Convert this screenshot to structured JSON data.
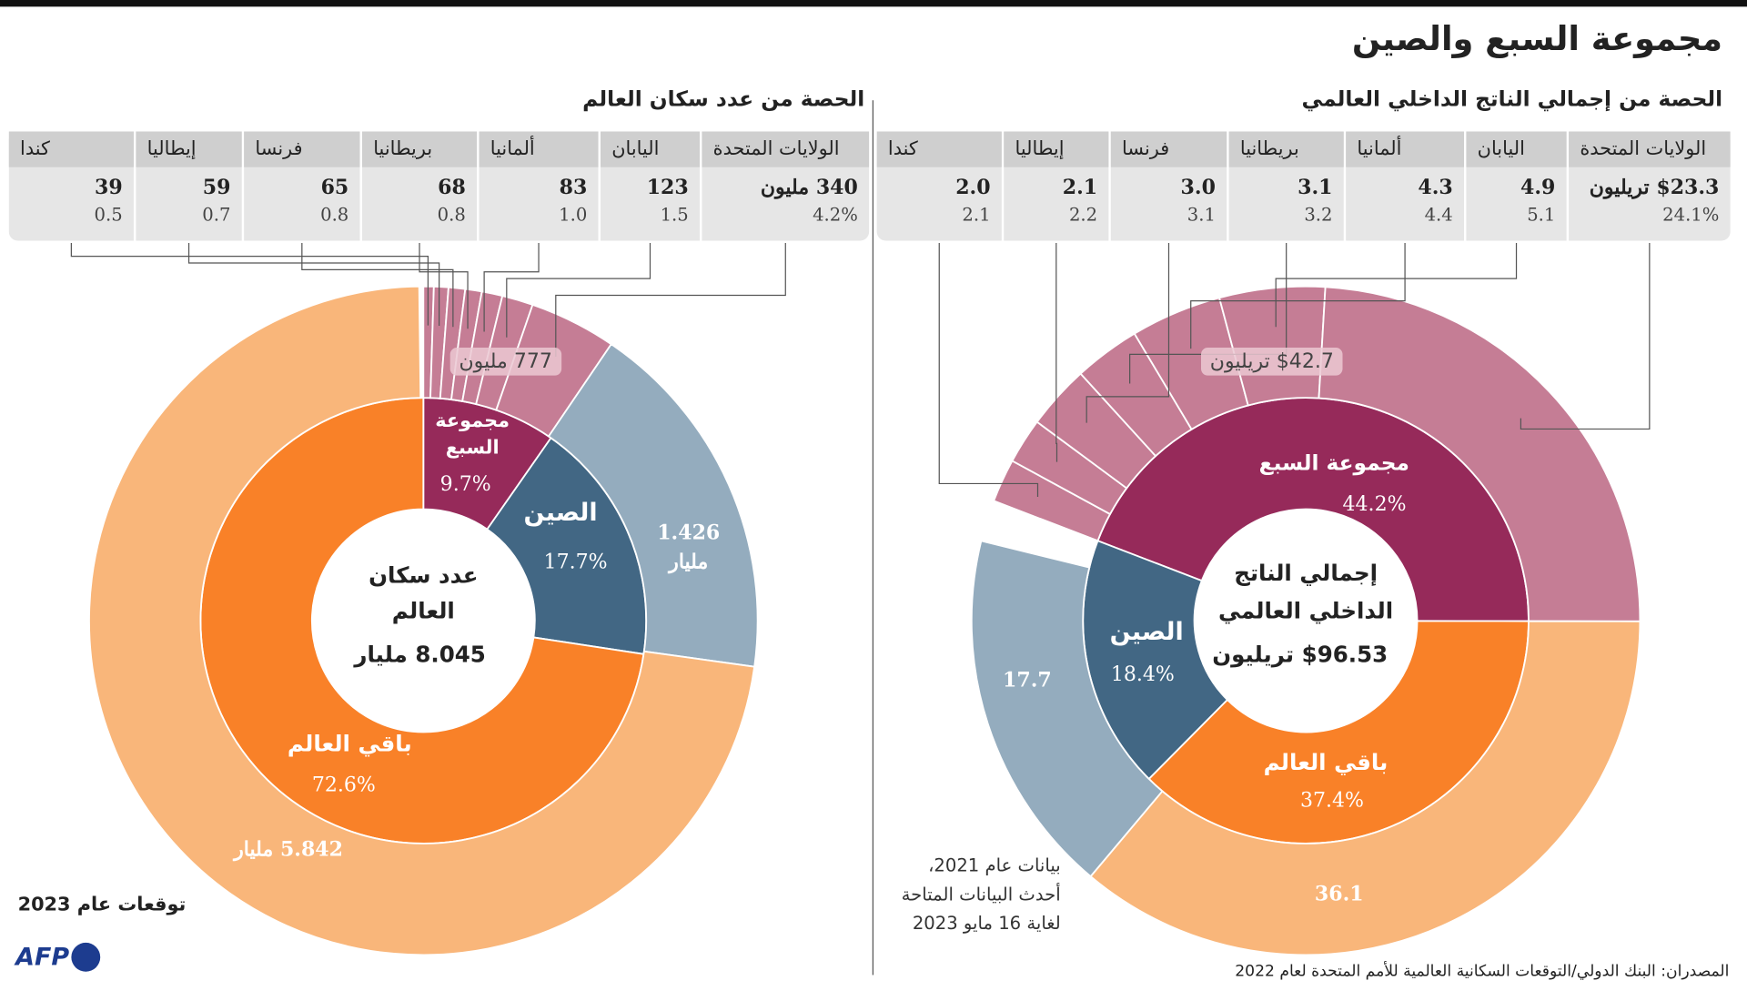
{
  "title": "مجموعة السبع والصين",
  "gdp": {
    "subtitle": "الحصة من إجمالي الناتج الداخلي العالمي",
    "table": [
      {
        "country": "الولايات المتحدة",
        "value": "$23.3 تريليون",
        "share": "24.1%"
      },
      {
        "country": "اليابان",
        "value": "4.9",
        "share": "5.1"
      },
      {
        "country": "ألمانيا",
        "value": "4.3",
        "share": "4.4"
      },
      {
        "country": "بريطانيا",
        "value": "3.1",
        "share": "3.2"
      },
      {
        "country": "فرنسا",
        "value": "3.0",
        "share": "3.1"
      },
      {
        "country": "إيطاليا",
        "value": "2.1",
        "share": "2.2"
      },
      {
        "country": "كندا",
        "value": "2.0",
        "share": "2.1"
      }
    ],
    "center_label": "إجمالي الناتج الداخلي العالمي",
    "center_value": "$96.53 تريليون",
    "g7_total": "$42.7 تريليون",
    "g7_label": "مجموعة السبع",
    "g7_share": "44.2%",
    "china_label": "الصين",
    "china_share": "18.4%",
    "china_value": "17.7",
    "rest_label": "باقي العالم",
    "rest_share": "37.4%",
    "rest_value": "36.1",
    "note": [
      "بيانات عام 2021،",
      "أحدث البيانات المتاحة",
      "لغاية 16 مايو 2023"
    ]
  },
  "population": {
    "subtitle": "الحصة من عدد سكان العالم",
    "table": [
      {
        "country": "الولايات المتحدة",
        "value": "340 مليون",
        "share": "4.2%"
      },
      {
        "country": "اليابان",
        "value": "123",
        "share": "1.5"
      },
      {
        "country": "ألمانيا",
        "value": "83",
        "share": "1.0"
      },
      {
        "country": "بريطانيا",
        "value": "68",
        "share": "0.8"
      },
      {
        "country": "فرنسا",
        "value": "65",
        "share": "0.8"
      },
      {
        "country": "إيطاليا",
        "value": "59",
        "share": "0.7"
      },
      {
        "country": "كندا",
        "value": "39",
        "share": "0.5"
      }
    ],
    "center_label": "عدد سكان العالم",
    "center_value": "8.045 مليار",
    "g7_total": "777 مليون",
    "g7_label": "مجموعة السبع",
    "g7_share": "9.7%",
    "china_label": "الصين",
    "china_share": "17.7%",
    "china_value": "1.426 مليار",
    "rest_label": "باقي العالم",
    "rest_share": "72.6%",
    "rest_value": "5.842 مليار",
    "note": "توقعات عام 2023"
  },
  "source": "المصدران: البنك الدولي/التوقعات السكانية العالمية للأمم المتحدة لعام 2022",
  "logo": "AFP",
  "chart_data": [
    {
      "type": "pie",
      "title": "الحصة من إجمالي الناتج الداخلي العالمي",
      "inner": {
        "categories": [
          "مجموعة السبع",
          "باقي العالم",
          "الصين"
        ],
        "values": [
          44.2,
          37.4,
          18.4
        ]
      },
      "outer": {
        "categories": [
          "كندا",
          "إيطاليا",
          "فرنسا",
          "بريطانيا",
          "ألمانيا",
          "اليابان",
          "الولايات المتحدة",
          "باقي العالم",
          "الصين"
        ],
        "values": [
          2.1,
          2.2,
          3.1,
          3.2,
          4.4,
          5.1,
          24.1,
          36.1,
          17.7
        ]
      }
    },
    {
      "type": "pie",
      "title": "الحصة من عدد سكان العالم",
      "inner": {
        "categories": [
          "مجموعة السبع",
          "الصين",
          "باقي العالم"
        ],
        "values": [
          9.7,
          17.7,
          72.6
        ]
      },
      "outer": {
        "categories": [
          "كندا",
          "إيطاليا",
          "فرنسا",
          "بريطانيا",
          "ألمانيا",
          "اليابان",
          "الولايات المتحدة",
          "الصين",
          "باقي العالم"
        ],
        "values": [
          0.5,
          0.7,
          0.8,
          0.8,
          1.0,
          1.5,
          4.2,
          17.7,
          72.6
        ]
      }
    }
  ],
  "colors": {
    "g7_inner": "#962a5a",
    "g7_outer": "#c57d95",
    "china_inner": "#426784",
    "china_outer": "#94acbe",
    "rest_inner": "#f98128",
    "rest_outer": "#f9b67a"
  }
}
